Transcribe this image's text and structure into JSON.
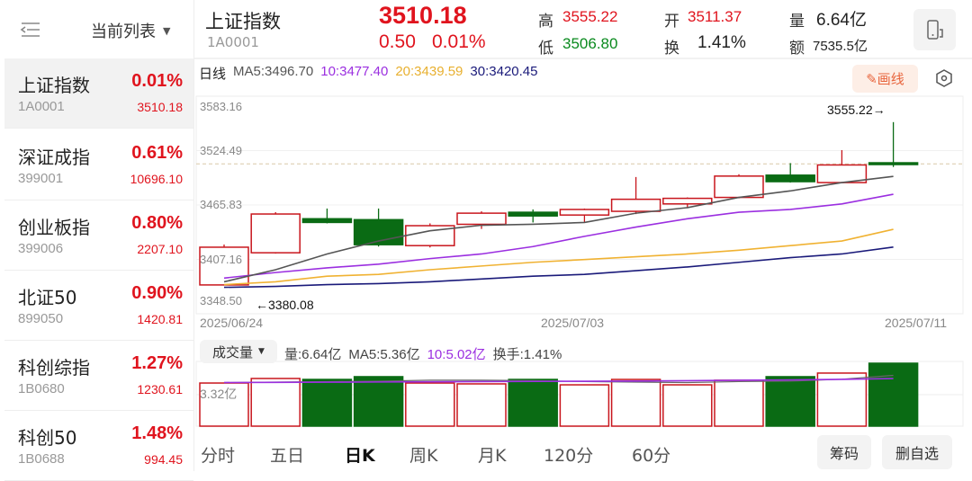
{
  "sidebar": {
    "list_title": "当前列表",
    "items": [
      {
        "name": "上证指数",
        "code": "1A0001",
        "pct": "0.01%",
        "price": "3510.18"
      },
      {
        "name": "深证成指",
        "code": "399001",
        "pct": "0.61%",
        "price": "10696.10"
      },
      {
        "name": "创业板指",
        "code": "399006",
        "pct": "0.80%",
        "price": "2207.10"
      },
      {
        "name": "北证50",
        "code": "899050",
        "pct": "0.90%",
        "price": "1420.81"
      },
      {
        "name": "科创综指",
        "code": "1B0680",
        "pct": "1.27%",
        "price": "1230.61"
      },
      {
        "name": "科创50",
        "code": "1B0688",
        "pct": "1.48%",
        "price": "994.45"
      }
    ]
  },
  "header": {
    "name": "上证指数",
    "code": "1A0001",
    "price": "3510.18",
    "change": "0.50",
    "change_pct": "0.01%",
    "high_label": "高",
    "high": "3555.22",
    "low_label": "低",
    "low": "3506.80",
    "open_label": "开",
    "open": "3511.37",
    "turnover_label": "换",
    "turnover": "1.41%",
    "volume_label": "量",
    "volume": "6.64亿",
    "amount_label": "额",
    "amount": "7535.5亿"
  },
  "ma_bar": {
    "period": "日线",
    "ma5": "MA5:3496.70",
    "ma10": "10:3477.40",
    "ma20": "20:3439.59",
    "ma30": "30:3420.45",
    "draw_label": "画线"
  },
  "colors": {
    "up": "#c8161d",
    "down": "#0a6b14",
    "ma5": "#555555",
    "ma10": "#9b2fe0",
    "ma20": "#f0b232",
    "ma30": "#1a1a7a"
  },
  "chart_data": [
    {
      "type": "candlestick",
      "y_ticks": [
        "3583.16",
        "3524.49",
        "3465.83",
        "3407.16",
        "3348.50"
      ],
      "ylim": [
        3348.5,
        3583.16
      ],
      "x_ticks": [
        "2025/06/24",
        "2025/07/03",
        "2025/07/11"
      ],
      "max_label": "3555.22→",
      "min_label": "←3380.08",
      "last_close": 3510.18,
      "candles": [
        {
          "o": 3379.6,
          "h": 3423.2,
          "l": 3380.08,
          "c": 3420.3
        },
        {
          "o": 3414.3,
          "h": 3458.1,
          "l": 3413.4,
          "c": 3456.1
        },
        {
          "o": 3451,
          "h": 3462,
          "l": 3446,
          "c": 3447
        },
        {
          "o": 3450,
          "h": 3462,
          "l": 3421,
          "c": 3423
        },
        {
          "o": 3422,
          "h": 3446,
          "l": 3420,
          "c": 3443.5
        },
        {
          "o": 3445,
          "h": 3459,
          "l": 3440,
          "c": 3457
        },
        {
          "o": 3458,
          "h": 3461,
          "l": 3447,
          "c": 3454
        },
        {
          "o": 3455,
          "h": 3462,
          "l": 3447,
          "c": 3461
        },
        {
          "o": 3459,
          "h": 3496,
          "l": 3456,
          "c": 3472
        },
        {
          "o": 3467,
          "h": 3474,
          "l": 3463,
          "c": 3473
        },
        {
          "o": 3474,
          "h": 3499,
          "l": 3473,
          "c": 3497
        },
        {
          "o": 3498,
          "h": 3511,
          "l": 3490,
          "c": 3491
        },
        {
          "o": 3490,
          "h": 3525,
          "l": 3490,
          "c": 3509
        },
        {
          "o": 3511.37,
          "h": 3555.22,
          "l": 3506.8,
          "c": 3510.18
        }
      ],
      "ma": {
        "ma5": [
          3383,
          3396,
          3413,
          3427,
          3438,
          3444,
          3445,
          3447,
          3457,
          3463,
          3474,
          3481,
          3490,
          3496.7
        ],
        "ma10": [
          3387,
          3393,
          3398,
          3402,
          3408,
          3413,
          3421,
          3432,
          3442,
          3451,
          3458,
          3461,
          3467,
          3477.4
        ],
        "ma20": [
          3380,
          3383,
          3389,
          3391,
          3396,
          3400,
          3404,
          3407,
          3410,
          3413,
          3417,
          3422,
          3427,
          3439.59
        ],
        "ma30": [
          3377,
          3378,
          3380,
          3381,
          3383,
          3386,
          3389,
          3391,
          3395,
          3399,
          3404,
          3409,
          3413,
          3420.45
        ]
      }
    },
    {
      "type": "bar",
      "unit": "亿",
      "y_tick": "3.32亿",
      "ylim": [
        0,
        6.64
      ],
      "values": [
        4.55,
        5.03,
        4.93,
        5.22,
        4.55,
        4.46,
        4.93,
        4.36,
        4.93,
        4.36,
        4.84,
        5.22,
        5.6,
        6.64
      ],
      "up": [
        true,
        true,
        false,
        false,
        true,
        true,
        false,
        true,
        true,
        true,
        true,
        false,
        true,
        false
      ],
      "ma5": [
        4.6,
        4.65,
        4.7,
        4.75,
        4.85,
        4.85,
        4.8,
        4.7,
        4.65,
        4.6,
        4.7,
        4.75,
        4.95,
        5.36
      ],
      "ma10": [
        4.6,
        4.62,
        4.64,
        4.66,
        4.68,
        4.7,
        4.72,
        4.74,
        4.76,
        4.8,
        4.84,
        4.88,
        4.94,
        5.02
      ]
    }
  ],
  "volume_bar": {
    "selector": "成交量",
    "vol": "量:6.64亿",
    "ma5": "MA5:5.36亿",
    "ma10": "10:5.02亿",
    "turnover": "换手:1.41%"
  },
  "tabs": [
    "分时",
    "五日",
    "日K",
    "周K",
    "月K",
    "120分",
    "60分"
  ],
  "buttons": {
    "chips": "筹码",
    "remove": "删自选"
  }
}
